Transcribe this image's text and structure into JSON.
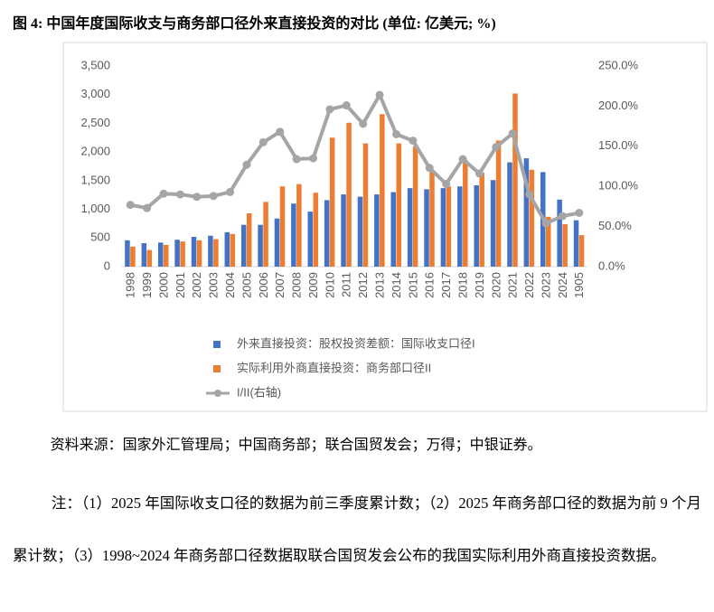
{
  "title": "图 4: 中国年度国际收支与商务部口径外来直接投资的对比 (单位: 亿美元; %)",
  "chart_data": {
    "type": "bar",
    "categories": [
      "1998",
      "1999",
      "2000",
      "2001",
      "2002",
      "2003",
      "2004",
      "2005",
      "2006",
      "2007",
      "2008",
      "2009",
      "2010",
      "2011",
      "2012",
      "2013",
      "2014",
      "2015",
      "2016",
      "2017",
      "2018",
      "2019",
      "2020",
      "2021",
      "2022",
      "2023",
      "2024",
      "1905"
    ],
    "series": [
      {
        "name": "外来直接投资：股权投资差额：国际收支口径I",
        "color": "#4472c4",
        "values": [
          460,
          410,
          420,
          470,
          520,
          540,
          600,
          730,
          730,
          840,
          1100,
          960,
          1160,
          1260,
          1220,
          1260,
          1300,
          1370,
          1350,
          1370,
          1400,
          1420,
          1510,
          1820,
          1890,
          1650,
          1170,
          810
        ]
      },
      {
        "name": "实际利用外商直接投资：商务部口径II",
        "color": "#ed7d31",
        "values": [
          350,
          290,
          380,
          440,
          460,
          480,
          570,
          930,
          1130,
          1400,
          1440,
          1290,
          2250,
          2510,
          2150,
          2660,
          2150,
          2100,
          1650,
          1400,
          1860,
          1640,
          2200,
          3020,
          1690,
          870,
          740,
          550
        ]
      },
      {
        "name": "I/II(右轴)",
        "color": "#a5a5a5",
        "type": "line",
        "axis": "y2",
        "values": [
          77,
          73,
          91,
          90,
          87,
          88,
          93,
          127,
          155,
          168,
          134,
          135,
          196,
          201,
          178,
          214,
          165,
          157,
          123,
          103,
          134,
          116,
          149,
          166,
          90,
          54,
          63,
          67
        ]
      }
    ],
    "ylim": [
      0,
      3500
    ],
    "yticks": [
      0,
      500,
      {
        "value": 1000,
        "label": "1,000"
      },
      {
        "value": 1500,
        "label": "1,500"
      },
      {
        "value": 2000,
        "label": "2,000"
      },
      {
        "value": 2500,
        "label": "2,500"
      },
      {
        "value": 3000,
        "label": "3,000"
      },
      {
        "value": 3500,
        "label": "3,500"
      }
    ],
    "y2lim": [
      0,
      250
    ],
    "y2ticks": [
      {
        "value": 0,
        "label": "0.0%"
      },
      {
        "value": 50,
        "label": "50.0%"
      },
      {
        "value": 100,
        "label": "100.0%"
      },
      {
        "value": 150,
        "label": "150.0%"
      },
      {
        "value": 200,
        "label": "200.0%"
      },
      {
        "value": 250,
        "label": "250.0%"
      }
    ],
    "grid": false,
    "legend": "bottom"
  },
  "source": "资料来源：国家外汇管理局；中国商务部；联合国贸发会；万得；中银证券。",
  "note": "注：（1）2025 年国际收支口径的数据为前三季度累计数；（2）2025 年商务部口径的数据为前 9 个月累计数；（3）1998~2024 年商务部口径数据取联合国贸发会公布的我国实际利用外商直接投资数据。"
}
